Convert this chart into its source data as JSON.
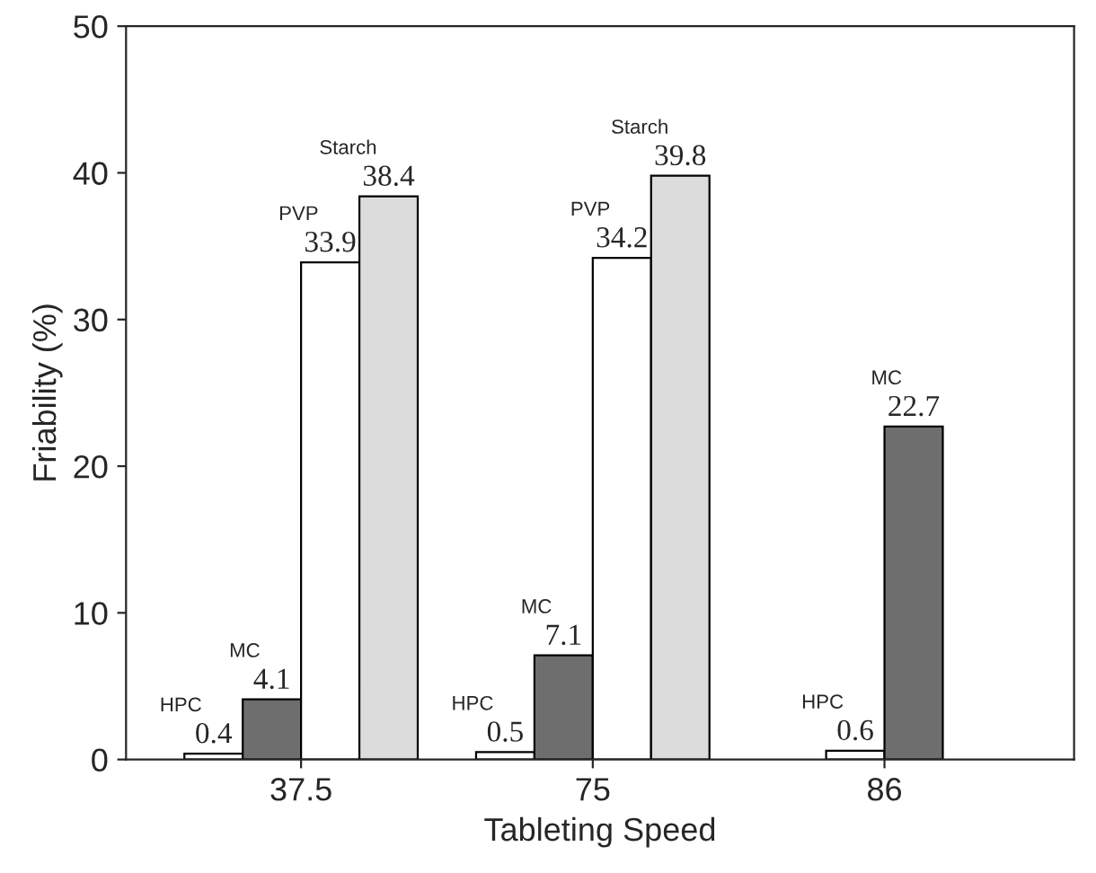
{
  "chart_data": {
    "type": "bar",
    "xlabel": "Tableting Speed",
    "ylabel": "Friability (%)",
    "categories": [
      "37.5",
      "75",
      "86"
    ],
    "series": [
      {
        "name": "HPC",
        "color": "#ffffff",
        "values": [
          0.4,
          0.5,
          0.6
        ]
      },
      {
        "name": "MC",
        "color": "#6e6e6e",
        "values": [
          4.1,
          7.1,
          22.7
        ]
      },
      {
        "name": "PVP",
        "color": "#ffffff",
        "values": [
          33.9,
          34.2,
          null
        ]
      },
      {
        "name": "Starch",
        "color": "#dcdcdc",
        "values": [
          38.4,
          39.8,
          null
        ]
      }
    ],
    "ylim": [
      0,
      50
    ],
    "yticks": [
      0,
      10,
      20,
      30,
      40,
      50
    ],
    "data_labels": true,
    "grid": false,
    "legend": false
  }
}
